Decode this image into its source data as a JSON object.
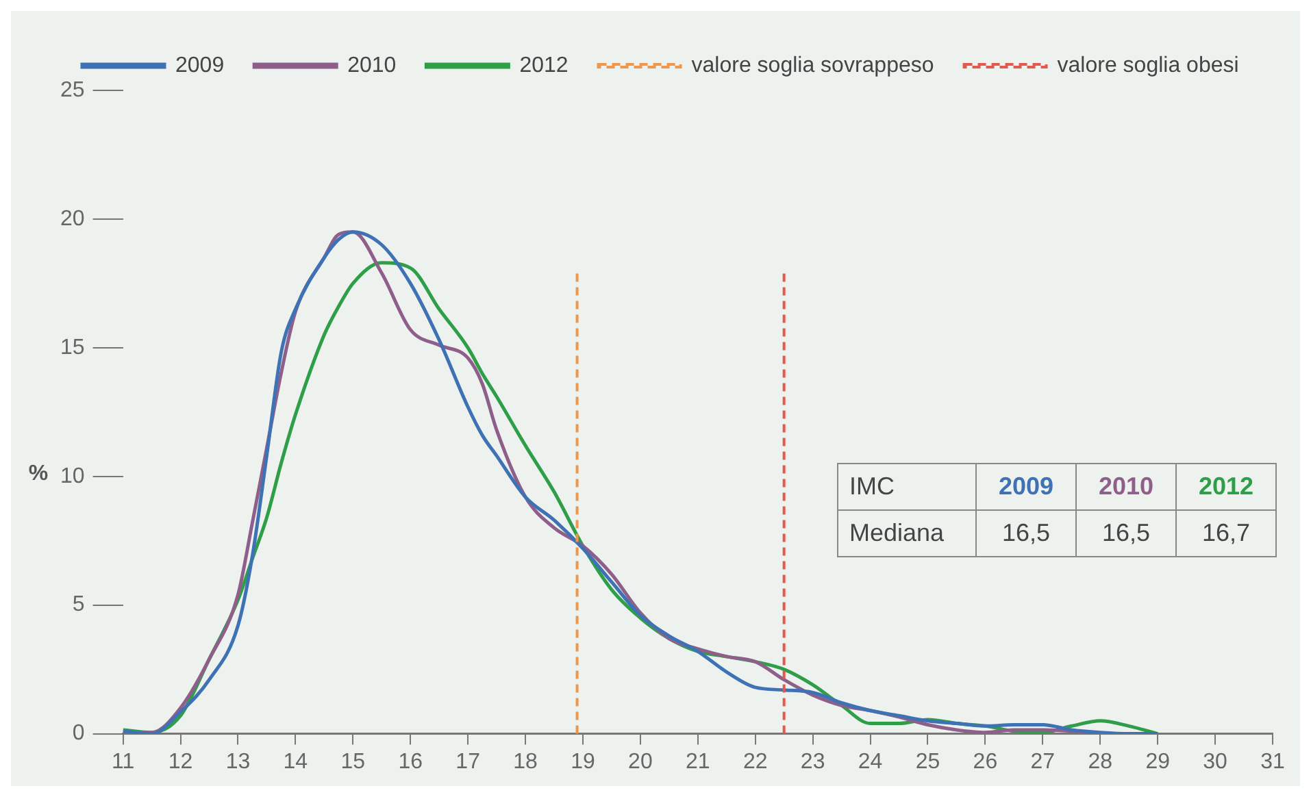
{
  "chart_data": {
    "type": "line",
    "ylabel": "%",
    "x": [
      11,
      11.5,
      12,
      12.5,
      13,
      13.25,
      13.5,
      13.75,
      14,
      14.5,
      14.75,
      15,
      15.5,
      16,
      16.5,
      17,
      17.25,
      17.5,
      18,
      18.5,
      19,
      19.5,
      20,
      20.5,
      21,
      21.5,
      22,
      22.5,
      23,
      23.5,
      24,
      24.5,
      25,
      25.5,
      26,
      26.5,
      27,
      27.5,
      28,
      28.5,
      29
    ],
    "series": [
      {
        "name": "2009",
        "color": "#3f72b4",
        "values": [
          0.1,
          0,
          0.85,
          2.1,
          4.2,
          6.9,
          10.8,
          14.8,
          16.5,
          18.5,
          19.2,
          19.5,
          19.0,
          17.5,
          15.3,
          12.7,
          11.6,
          10.8,
          9.2,
          8.3,
          7.2,
          5.9,
          4.6,
          3.8,
          3.2,
          2.4,
          1.8,
          1.7,
          1.6,
          1.2,
          0.9,
          0.7,
          0.5,
          0.4,
          0.3,
          0.35,
          0.35,
          0.15,
          0.05,
          0,
          0
        ]
      },
      {
        "name": "2010",
        "color": "#8f5f8c",
        "values": [
          0.05,
          0.05,
          1.0,
          2.9,
          5.4,
          8.2,
          11.1,
          14.0,
          16.4,
          18.5,
          19.4,
          19.5,
          17.9,
          15.7,
          15.1,
          14.6,
          13.6,
          11.8,
          9.2,
          8.0,
          7.3,
          6.2,
          4.7,
          3.7,
          3.3,
          3.0,
          2.8,
          2.1,
          1.5,
          1.1,
          0.9,
          0.65,
          0.35,
          0.15,
          0.05,
          0.15,
          0.15,
          0.1,
          0,
          0,
          0
        ]
      },
      {
        "name": "2012",
        "color": "#2e9e48",
        "values": [
          0.15,
          0.05,
          0.7,
          2.9,
          5.2,
          6.8,
          8.4,
          10.5,
          12.4,
          15.5,
          16.6,
          17.5,
          18.3,
          18.1,
          16.5,
          15.0,
          14.0,
          13.1,
          11.2,
          9.4,
          7.3,
          5.6,
          4.5,
          3.7,
          3.2,
          3.0,
          2.8,
          2.5,
          1.9,
          1.1,
          0.4,
          0.4,
          0.55,
          0.4,
          0.3,
          0.1,
          0.05,
          0.3,
          0.5,
          0.3,
          0
        ]
      }
    ],
    "xlim": [
      11,
      31
    ],
    "xticks": [
      11,
      12,
      13,
      14,
      15,
      16,
      17,
      18,
      19,
      20,
      21,
      22,
      23,
      24,
      25,
      26,
      27,
      28,
      29,
      30,
      31
    ],
    "ylim": [
      0,
      25
    ],
    "yticks": [
      0,
      5,
      10,
      15,
      20,
      25
    ],
    "ref_lines": [
      {
        "axis": "x",
        "value": 18.9,
        "label": "valore soglia sovrappeso",
        "color": "#f0964a",
        "line_style": "dashed"
      },
      {
        "axis": "x",
        "value": 22.5,
        "label": "valore soglia obesi",
        "color": "#e05a50",
        "line_style": "dashed"
      }
    ],
    "annotations": [
      "IMC",
      "Mediana",
      "16,5",
      "16,5",
      "16,7"
    ],
    "grid": false,
    "legend": "top left",
    "marker": "none",
    "line_style": "solid"
  }
}
